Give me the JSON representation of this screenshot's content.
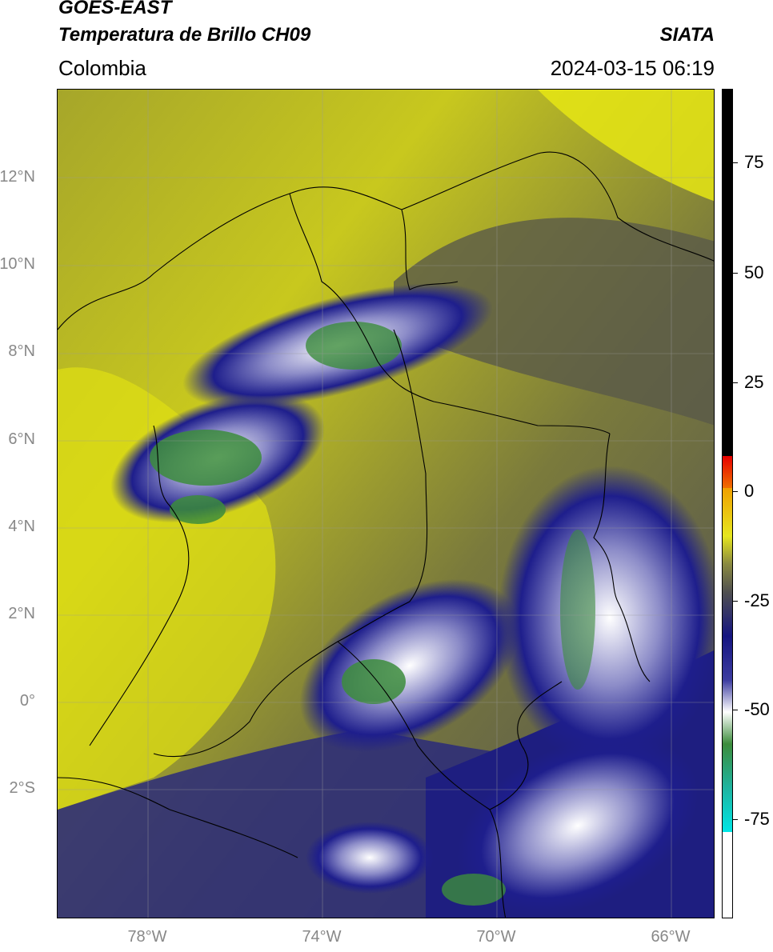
{
  "header": {
    "title_line1": "GOES-EAST",
    "title_line2": "Temperatura de Brillo CH09",
    "agency": "SIATA",
    "region": "Colombia",
    "datetime": "2024-03-15 06:19"
  },
  "map": {
    "lat_labels": [
      "12°N",
      "10°N",
      "8°N",
      "6°N",
      "4°N",
      "2°N",
      "0°",
      "2°S"
    ],
    "lon_labels": [
      "78°W",
      "74°W",
      "70°W",
      "66°W"
    ],
    "background_color": "#c8c81e",
    "cold_cloud_color": "#1e1e8c",
    "coldest_color": "#3c9646"
  },
  "colorbar": {
    "tick_labels": [
      "75",
      "50",
      "25",
      "0",
      "-25",
      "-50",
      "-75"
    ],
    "colors": [
      "#000000",
      "#e60000",
      "#f0a000",
      "#e6e61e",
      "#505050",
      "#141480",
      "#ffffff",
      "#3c8c3c",
      "#1eb4a0",
      "#00e6e6",
      "#ffffff"
    ]
  }
}
